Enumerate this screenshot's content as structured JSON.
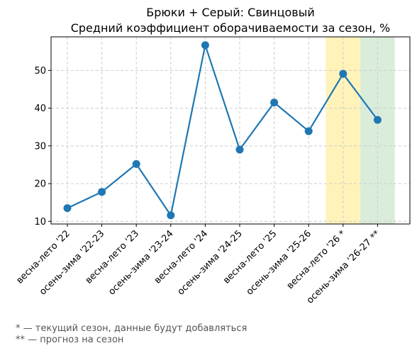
{
  "chart_data": {
    "type": "line",
    "title": "Брюки + Серый: Свинцовый",
    "subtitle": "Средний коэффициент оборачиваемости за сезон, %",
    "xlabel": "",
    "ylabel": "",
    "categories": [
      "весна-лето '22",
      "осень-зима '22-23",
      "весна-лето '23",
      "осень-зима '23-24",
      "весна-лето '24",
      "осень-зима '24-25",
      "весна-лето '25",
      "осень-зима '25-26",
      "весна-лето '26 *",
      "осень-зима '26-27 **"
    ],
    "series": [
      {
        "values": [
          13.5,
          17.8,
          25.2,
          11.6,
          56.7,
          29.0,
          41.5,
          33.9,
          49.1,
          36.9
        ]
      }
    ],
    "ylim": [
      9.3,
      58.9
    ],
    "yticks": [
      10,
      20,
      30,
      40,
      50
    ],
    "grid": true,
    "line_color": "#1f77b4",
    "highlights": [
      {
        "category_index": 8,
        "color": "#fff2b3",
        "meaning": "current season"
      },
      {
        "category_index": 9,
        "color": "#d6ead6",
        "meaning": "forecast"
      }
    ]
  },
  "notes": {
    "current": "* — текущий сезон, данные будут добавляться",
    "forecast": "** — прогноз на сезон"
  }
}
